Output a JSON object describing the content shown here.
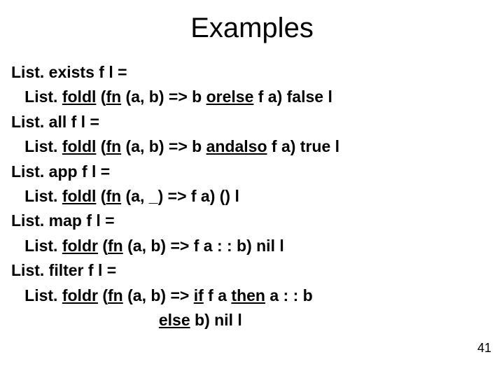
{
  "title": "Examples",
  "code": {
    "l1_p1": "List. exists f l =",
    "l2_p1": "   List. ",
    "l2_u1": "foldl",
    "l2_p2": " (",
    "l2_u2": "fn",
    "l2_p3": " (a, b) => b ",
    "l2_u3": "orelse",
    "l2_p4": " f a) false l",
    "l3_p1": "List. all f l =",
    "l4_p1": "   List. ",
    "l4_u1": "foldl",
    "l4_p2": " (",
    "l4_u2": "fn",
    "l4_p3": " (a, b) => b ",
    "l4_u3": "andalso",
    "l4_p4": " f a) true l",
    "l5_p1": "List. app f l =",
    "l6_p1": "   List. ",
    "l6_u1": "foldl",
    "l6_p2": " (",
    "l6_u2": "fn",
    "l6_p3": " (a, _) => f a) () l",
    "l7_p1": "List. map f l =",
    "l8_p1": "   List. ",
    "l8_u1": "foldr",
    "l8_p2": " (",
    "l8_u2": "fn",
    "l8_p3": " (a, b) => f a : : b) nil l",
    "l9_p1": "List. filter f l =",
    "l10_p1": "   List. ",
    "l10_u1": "foldr",
    "l10_p2": " (",
    "l10_u2": "fn",
    "l10_p3": " (a, b) => ",
    "l10_u3": "if",
    "l10_p4": " f a ",
    "l10_u4": "then",
    "l10_p5": " a : : b",
    "l11_p1": "                                 ",
    "l11_u1": "else",
    "l11_p2": " b) nil l"
  },
  "page_number": "41"
}
